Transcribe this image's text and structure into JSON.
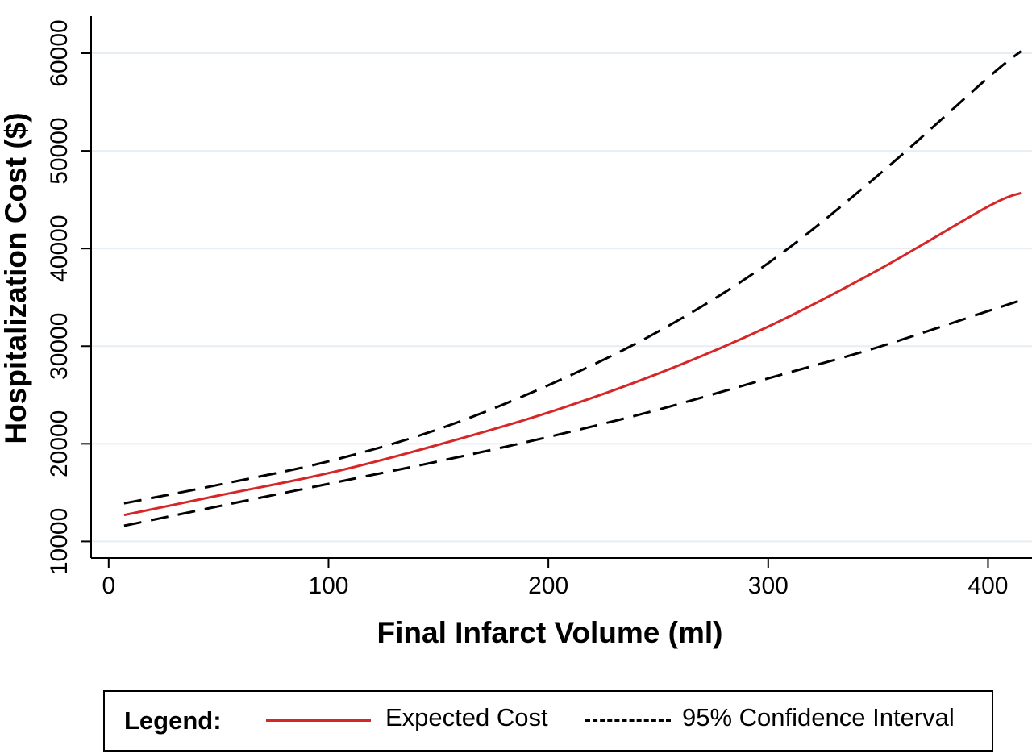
{
  "chart_data": {
    "type": "line",
    "xlabel": "Final Infarct Volume (ml)",
    "ylabel": "Hospitalization Cost ($)",
    "xlim": [
      -8,
      420
    ],
    "ylim": [
      8300,
      63800
    ],
    "xticks": [
      0,
      100,
      200,
      300,
      400
    ],
    "yticks": [
      10000,
      20000,
      30000,
      40000,
      50000,
      60000
    ],
    "grid": "horizontal",
    "legend_placement": "bottom",
    "series": [
      {
        "name": "Expected Cost",
        "color": "#d62728",
        "style": "solid",
        "x": [
          7,
          50,
          100,
          150,
          200,
          250,
          300,
          350,
          400,
          415
        ],
        "values": [
          12700,
          14700,
          17000,
          19900,
          23200,
          27200,
          32000,
          37800,
          44300,
          45700
        ]
      },
      {
        "name": "95% Confidence Interval",
        "color": "#000000",
        "style": "dashed",
        "x": [
          7,
          50,
          100,
          150,
          200,
          250,
          300,
          350,
          400,
          415
        ],
        "values": [
          13900,
          15800,
          18200,
          21500,
          26000,
          31500,
          38500,
          47500,
          57500,
          60200
        ]
      },
      {
        "name": "95% Confidence Interval",
        "color": "#000000",
        "style": "dashed",
        "x": [
          7,
          50,
          100,
          150,
          200,
          250,
          300,
          350,
          400,
          415
        ],
        "values": [
          11600,
          13600,
          15900,
          18200,
          20700,
          23500,
          26700,
          29900,
          33600,
          34700
        ]
      }
    ]
  },
  "legend": {
    "title": "Legend:",
    "items": [
      {
        "label": "Expected Cost",
        "color": "#d62728",
        "style": "solid"
      },
      {
        "label": "95% Confidence Interval",
        "color": "#000000",
        "style": "dashed"
      }
    ]
  }
}
